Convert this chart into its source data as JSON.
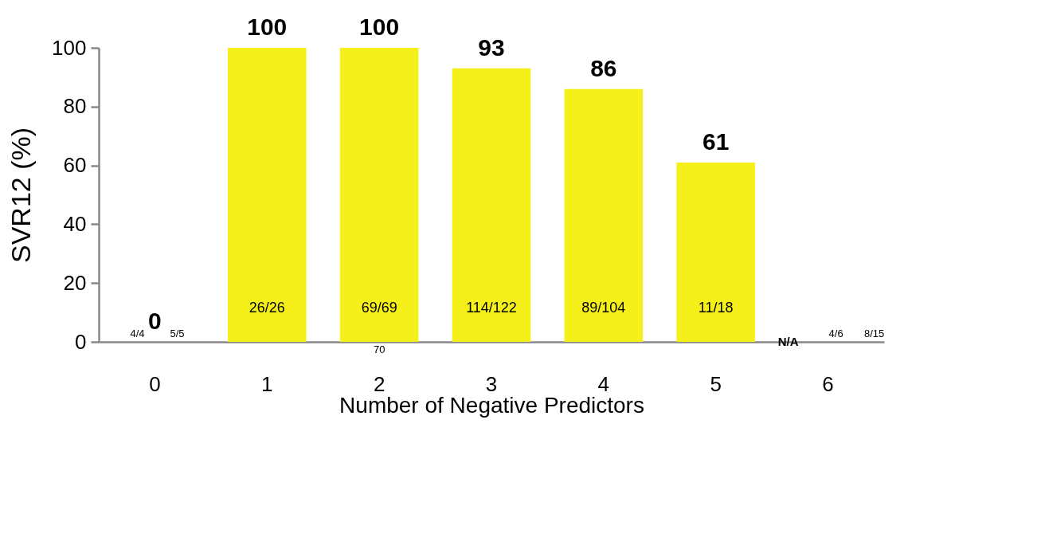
{
  "chart_data": {
    "type": "bar",
    "xlabel": "Number of Negative Predictors",
    "ylabel": "SVR12 (%)",
    "categories": [
      "0",
      "1",
      "2",
      "3",
      "4",
      "5",
      "6"
    ],
    "values": [
      0,
      100,
      100,
      93,
      86,
      61,
      null
    ],
    "value_labels": [
      "0",
      "100",
      "100",
      "93",
      "86",
      "61",
      "N/A"
    ],
    "color": "#f5f01a",
    "ylim": [
      0,
      100
    ],
    "yticks": [
      0,
      20,
      40,
      60,
      80,
      100
    ],
    "grid": false,
    "annotations": [
      "4/4",
      "5/5",
      "26/26",
      "69/69",
      "70",
      "114/122",
      "89/104",
      "11/18",
      "4/6",
      "8/15"
    ]
  }
}
